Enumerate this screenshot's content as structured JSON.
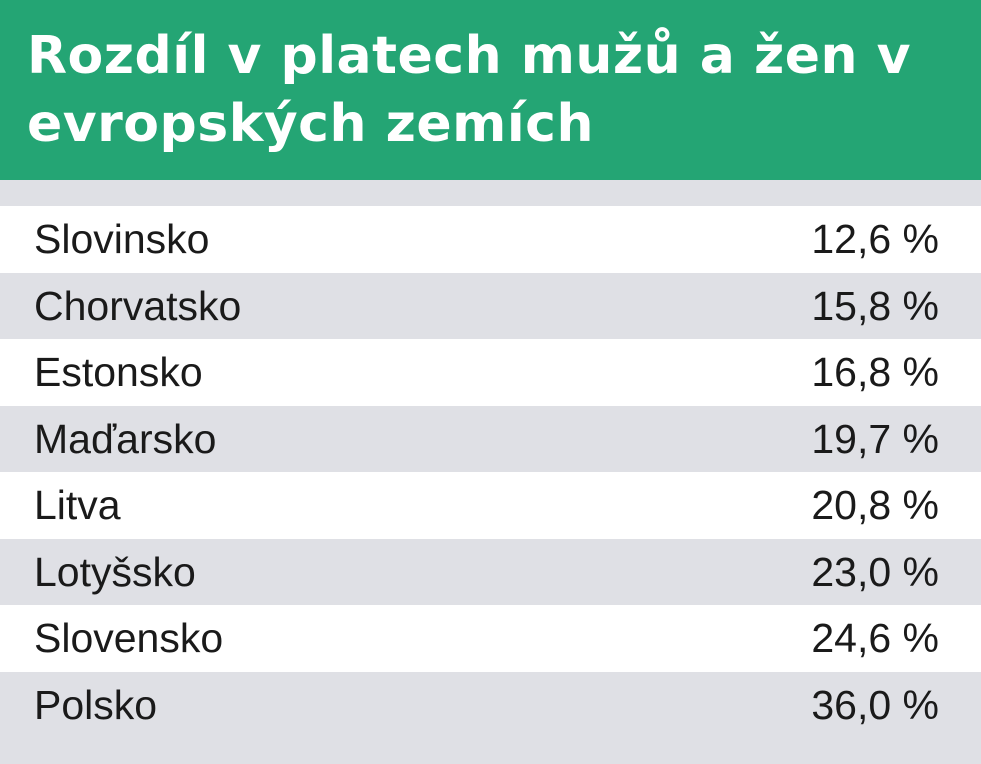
{
  "chart_data": {
    "type": "table",
    "title": "Rozdíl v platech mužů a žen v evropských zemích",
    "rows": [
      {
        "country": "Slovinsko",
        "value": 12.6,
        "label": "12,6 %"
      },
      {
        "country": "Chorvatsko",
        "value": 15.8,
        "label": "15,8 %"
      },
      {
        "country": "Estonsko",
        "value": 16.8,
        "label": "16,8 %"
      },
      {
        "country": "Maďarsko",
        "value": 19.7,
        "label": "19,7 %"
      },
      {
        "country": "Litva",
        "value": 20.8,
        "label": "20,8 %"
      },
      {
        "country": "Lotyšsko",
        "value": 23.0,
        "label": "23,0 %"
      },
      {
        "country": "Slovensko",
        "value": 24.6,
        "label": "24,6 %"
      },
      {
        "country": "Polsko",
        "value": 36.0,
        "label": "36,0 %"
      }
    ]
  },
  "colors": {
    "header": "#24a574",
    "stripe_light": "#ffffff",
    "stripe_gray": "#dfe0e5",
    "text": "#1a1a1a"
  }
}
